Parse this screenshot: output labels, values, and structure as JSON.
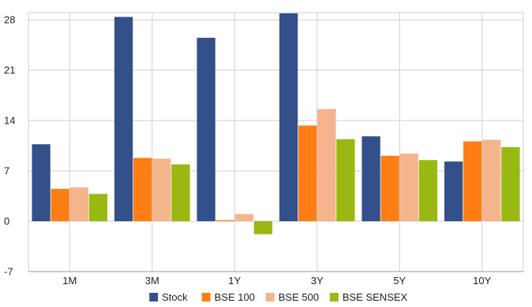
{
  "chart_data": {
    "type": "bar",
    "categories": [
      "1M",
      "3M",
      "1Y",
      "3Y",
      "5Y",
      "10Y"
    ],
    "series": [
      {
        "name": "Stock",
        "color": "#34508a",
        "values": [
          10.7,
          28.4,
          25.5,
          28.9,
          11.8,
          8.3
        ]
      },
      {
        "name": "BSE 100",
        "color": "#fd7e14",
        "values": [
          4.5,
          8.8,
          0.15,
          13.3,
          9.1,
          11.1
        ]
      },
      {
        "name": "BSE 500",
        "color": "#f4b48c",
        "values": [
          4.7,
          8.7,
          1.0,
          15.6,
          9.4,
          11.3
        ]
      },
      {
        "name": "BSE SENSEX",
        "color": "#99b811",
        "values": [
          3.8,
          7.9,
          -1.8,
          11.4,
          8.5,
          10.3
        ]
      }
    ],
    "yticks": [
      28,
      21,
      14,
      7,
      0,
      -7
    ],
    "ylim": [
      -7,
      29
    ],
    "grid": true,
    "legend_position": "bottom-center",
    "title": "",
    "xlabel": "",
    "ylabel": ""
  }
}
